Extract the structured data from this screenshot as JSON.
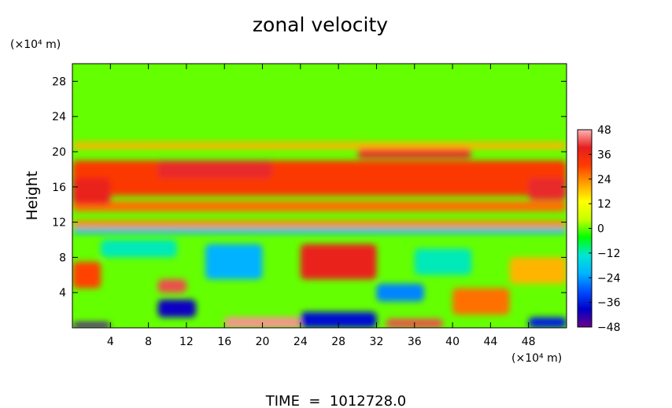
{
  "chart_data": {
    "type": "heatmap",
    "title": "zonal velocity",
    "ylabel": "Height",
    "y_unit": "(×10⁴ m)",
    "x_unit": "(×10⁴ m)",
    "footer": "TIME  =  1012728.0",
    "xlim": [
      0,
      52
    ],
    "ylim": [
      0,
      30
    ],
    "x_ticks": [
      4,
      8,
      12,
      16,
      20,
      24,
      28,
      32,
      36,
      40,
      44,
      48
    ],
    "y_ticks": [
      4,
      8,
      12,
      16,
      20,
      24,
      28
    ],
    "colorbar": {
      "range": [
        -48,
        48
      ],
      "ticks": [
        48,
        36,
        24,
        12,
        0,
        -12,
        -24,
        -36,
        -48
      ],
      "tick_labels": [
        "48",
        "36",
        "24",
        "12",
        "0",
        "−12",
        "−24",
        "−36",
        "−48"
      ],
      "colors": [
        "#6a008a",
        "#0000c8",
        "#0050ff",
        "#00b4ff",
        "#00e6d2",
        "#00ff00",
        "#c8ff00",
        "#ffff00",
        "#ffa000",
        "#ff3c00",
        "#e61e1e",
        "#ffb4b4"
      ]
    },
    "background_value": 0,
    "features": [
      {
        "x": 0,
        "y": 15,
        "w": 52,
        "h": 4,
        "value": 32
      },
      {
        "x": 0,
        "y": 20.3,
        "w": 52,
        "h": 0.8,
        "value": 20
      },
      {
        "x": 0,
        "y": 13.2,
        "w": 52,
        "h": 1.2,
        "value": 26
      },
      {
        "x": 0,
        "y": 11.4,
        "w": 52,
        "h": 0.8,
        "value": 24
      },
      {
        "x": 0,
        "y": 10.7,
        "w": 52,
        "h": 0.6,
        "value": -22
      },
      {
        "x": 9,
        "y": 17,
        "w": 12,
        "h": 2,
        "value": 40
      },
      {
        "x": 30,
        "y": 19.3,
        "w": 12,
        "h": 1,
        "value": 40
      },
      {
        "x": 0,
        "y": 14,
        "w": 4,
        "h": 3,
        "value": 38
      },
      {
        "x": 48,
        "y": 14.5,
        "w": 4,
        "h": 2.5,
        "value": 40
      },
      {
        "x": 24,
        "y": 5.5,
        "w": 8,
        "h": 4,
        "value": 38
      },
      {
        "x": 9,
        "y": 4,
        "w": 3,
        "h": 1.5,
        "value": 42
      },
      {
        "x": 0,
        "y": 4.5,
        "w": 3,
        "h": 3,
        "value": 30
      },
      {
        "x": 14,
        "y": 5.5,
        "w": 6,
        "h": 4,
        "value": -22
      },
      {
        "x": 9,
        "y": 1.2,
        "w": 4,
        "h": 2,
        "value": -40
      },
      {
        "x": 16,
        "y": 0,
        "w": 8,
        "h": 1.2,
        "value": 46
      },
      {
        "x": 24,
        "y": 0,
        "w": 8,
        "h": 1.8,
        "value": -38
      },
      {
        "x": 33,
        "y": 0,
        "w": 6,
        "h": 1,
        "value": 42
      },
      {
        "x": 32,
        "y": 3,
        "w": 5,
        "h": 2,
        "value": -26
      },
      {
        "x": 0,
        "y": 0,
        "w": 4,
        "h": 0.6,
        "value": -46
      },
      {
        "x": 48,
        "y": 0,
        "w": 4,
        "h": 1.2,
        "value": -36
      },
      {
        "x": 40,
        "y": 1.5,
        "w": 6,
        "h": 3,
        "value": 26
      },
      {
        "x": 46,
        "y": 5,
        "w": 6,
        "h": 3,
        "value": 20
      },
      {
        "x": 36,
        "y": 6,
        "w": 6,
        "h": 3,
        "value": -12
      },
      {
        "x": 3,
        "y": 8,
        "w": 8,
        "h": 2,
        "value": -12
      }
    ]
  }
}
